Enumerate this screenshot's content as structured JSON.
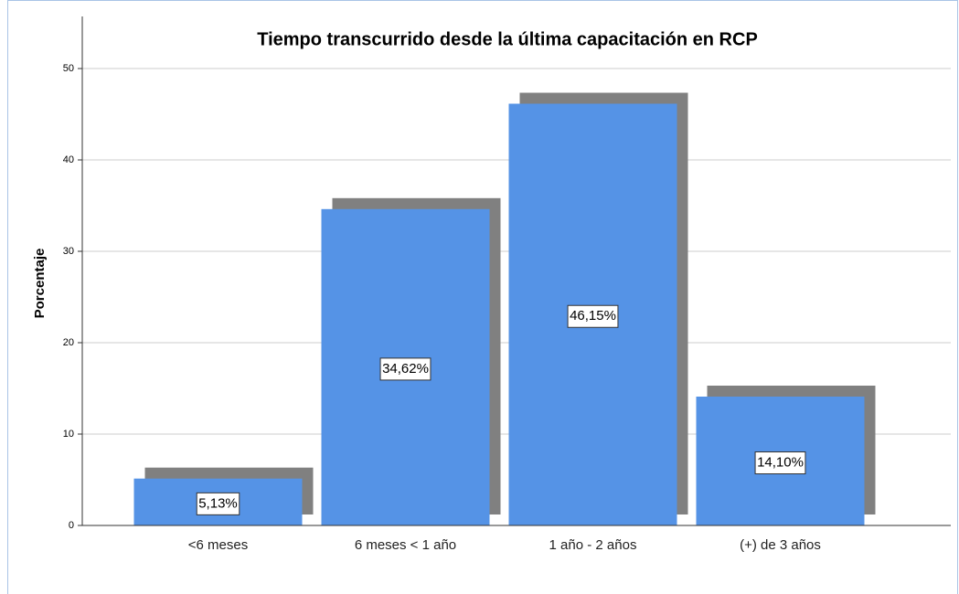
{
  "chart_data": {
    "type": "bar",
    "title": "Tiempo transcurrido desde la última capacitación en RCP",
    "ylabel": "Porcentaje",
    "categories": [
      "<6 meses",
      "6 meses < 1 año",
      "1 año - 2 años",
      "(+) de 3 años"
    ],
    "values": [
      5.13,
      34.62,
      46.15,
      14.1
    ],
    "value_labels": [
      "5,13%",
      "34,62%",
      "46,15%",
      "14,10%"
    ],
    "color": "#5593e6",
    "shadow_color": "#808080",
    "ylim": [
      0,
      55
    ],
    "yticks": [
      0,
      10,
      20,
      30,
      40,
      50
    ],
    "grid": true
  }
}
